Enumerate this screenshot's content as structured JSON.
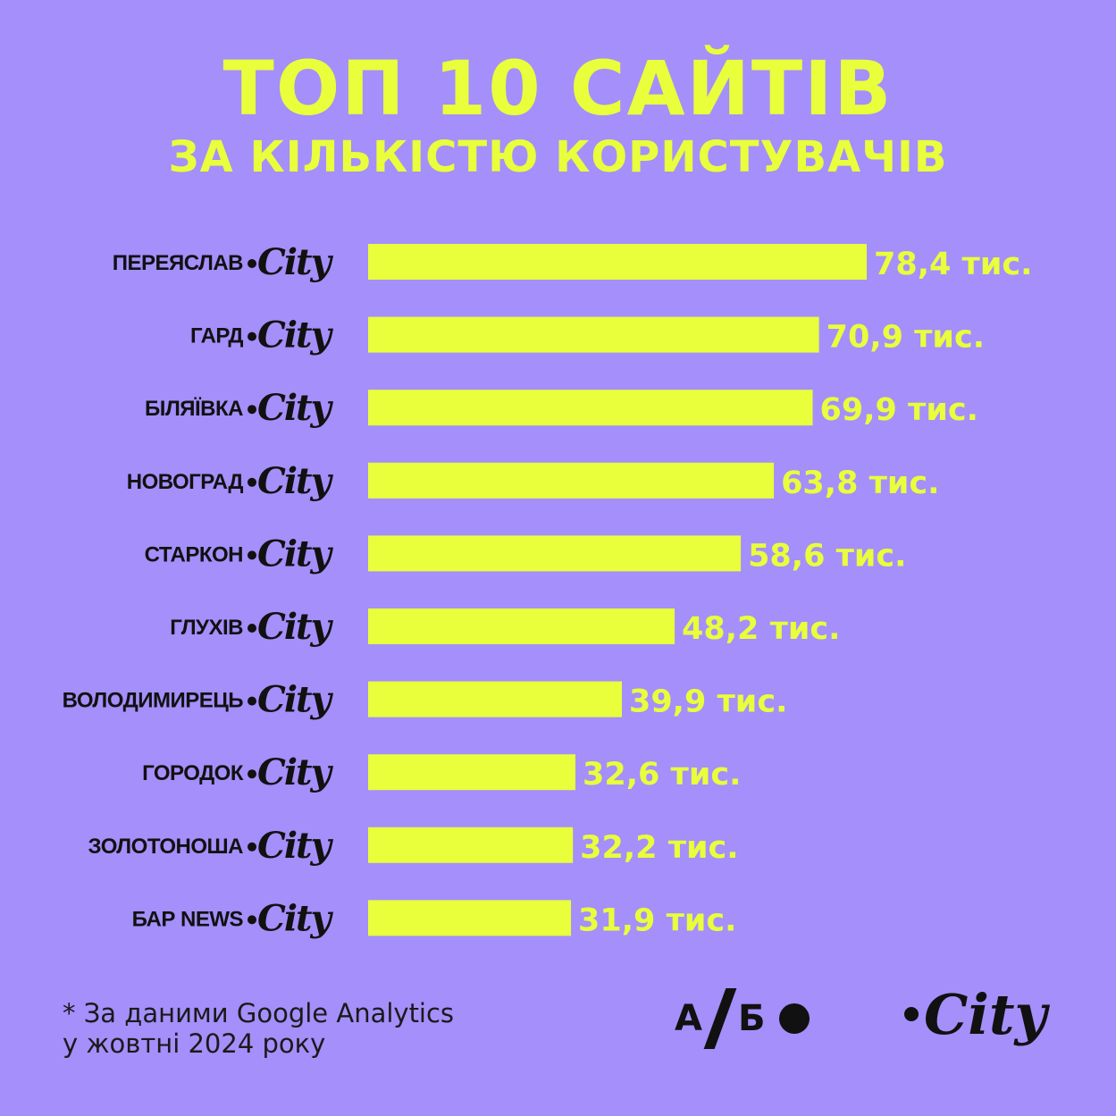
{
  "header": {
    "title": "ТОП 10 САЙТІВ",
    "subtitle": "ЗА КІЛЬКІСТЮ КОРИСТУВАЧІВ"
  },
  "colors": {
    "background": "#a48ffb",
    "bar": "#e9ff3b",
    "label_text": "#111111"
  },
  "city_mark": "City",
  "chart_data": {
    "type": "bar",
    "orientation": "horizontal",
    "categories": [
      "ПЕРЕЯСЛАВ",
      "ГАРД",
      "БІЛЯЇВКА",
      "НОВОГРАД",
      "СТАРКОН",
      "ГЛУХІВ",
      "ВОЛОДИМИРЕЦЬ",
      "ГОРОДОК",
      "ЗОЛОТОНОША",
      "БАР NEWS"
    ],
    "values": [
      78.4,
      70.9,
      69.9,
      63.8,
      58.6,
      48.2,
      39.9,
      32.6,
      32.2,
      31.9
    ],
    "value_labels": [
      "78,4 тис.",
      "70,9 тис.",
      "69,9 тис.",
      "63,8 тис.",
      "58,6 тис.",
      "48,2 тис.",
      "39,9 тис.",
      "32,6 тис.",
      "32,2 тис.",
      "31,9 тис."
    ],
    "grid": false,
    "axes_visible": false,
    "legend": "none"
  },
  "footnote": {
    "line1": "* За даними Google Analytics",
    "line2": "у жовтні 2024 року"
  },
  "logos": {
    "ab_left": "А",
    "ab_right": "Б",
    "city": "City"
  }
}
